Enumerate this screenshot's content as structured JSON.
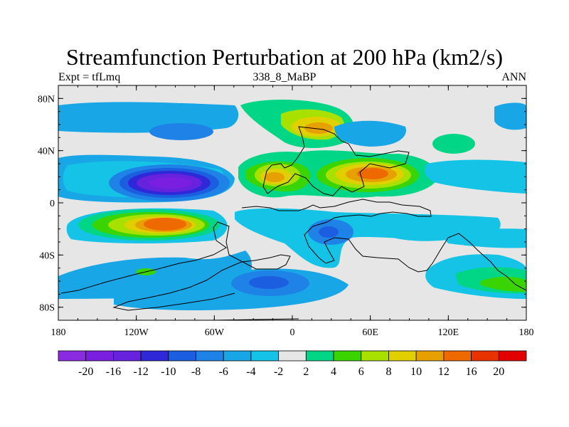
{
  "chart_data": {
    "type": "heatmap",
    "title": "Streamfunction Perturbation at 200 hPa (km2/s)",
    "subtitle_left": "Expt = tfLmq",
    "subtitle_center": "338_8_MaBP",
    "subtitle_right": "ANN",
    "xlim": [
      -180,
      180
    ],
    "ylim": [
      -90,
      90
    ],
    "x_ticks": [
      {
        "value": -180,
        "label": "180"
      },
      {
        "value": -120,
        "label": "120W"
      },
      {
        "value": -60,
        "label": "60W"
      },
      {
        "value": 0,
        "label": "0"
      },
      {
        "value": 60,
        "label": "60E"
      },
      {
        "value": 120,
        "label": "120E"
      },
      {
        "value": 180,
        "label": "180"
      }
    ],
    "y_ticks": [
      {
        "value": 80,
        "label": "80N"
      },
      {
        "value": 40,
        "label": "40N"
      },
      {
        "value": 0,
        "label": "0"
      },
      {
        "value": -40,
        "label": "40S"
      },
      {
        "value": -80,
        "label": "80S"
      }
    ],
    "colorbar": {
      "levels": [
        -20,
        -16,
        -12,
        -10,
        -8,
        -6,
        -4,
        -2,
        2,
        4,
        6,
        8,
        10,
        12,
        16,
        20
      ],
      "labels": [
        "-20",
        "-16",
        "-12",
        "-10",
        "-8",
        "-6",
        "-4",
        "-2",
        "2",
        "4",
        "6",
        "8",
        "10",
        "12",
        "16",
        "20"
      ],
      "colors": [
        "#8a2be2",
        "#7a1fe0",
        "#6622dd",
        "#2f28d8",
        "#1b5fe0",
        "#1f82e6",
        "#18a6e6",
        "#14c3e6",
        "#e6e6e6",
        "#00d685",
        "#3ad400",
        "#a8e000",
        "#e0d000",
        "#e6a000",
        "#ee6a00",
        "#e83200",
        "#e20000"
      ]
    },
    "features": [
      {
        "name": "low-cyclone-north-pacific",
        "lon": -95,
        "lat": 16,
        "value": -20
      },
      {
        "name": "high-south-pacific",
        "lon": -93,
        "lat": -17,
        "value": 16
      },
      {
        "name": "high-east-asia",
        "lon": 32,
        "lat": 52,
        "value": 12
      },
      {
        "name": "high-tibetan",
        "lon": 62,
        "lat": 22,
        "value": 16
      },
      {
        "name": "high-north-america",
        "lon": -15,
        "lat": 22,
        "value": 12
      },
      {
        "name": "low-south-atlantic",
        "lon": 28,
        "lat": -22,
        "value": -8
      },
      {
        "name": "low-south-ocean",
        "lon": -17,
        "lat": -60,
        "value": -8
      },
      {
        "name": "high-south-pacific-east",
        "lon": 160,
        "lat": -60,
        "value": 6
      }
    ]
  }
}
